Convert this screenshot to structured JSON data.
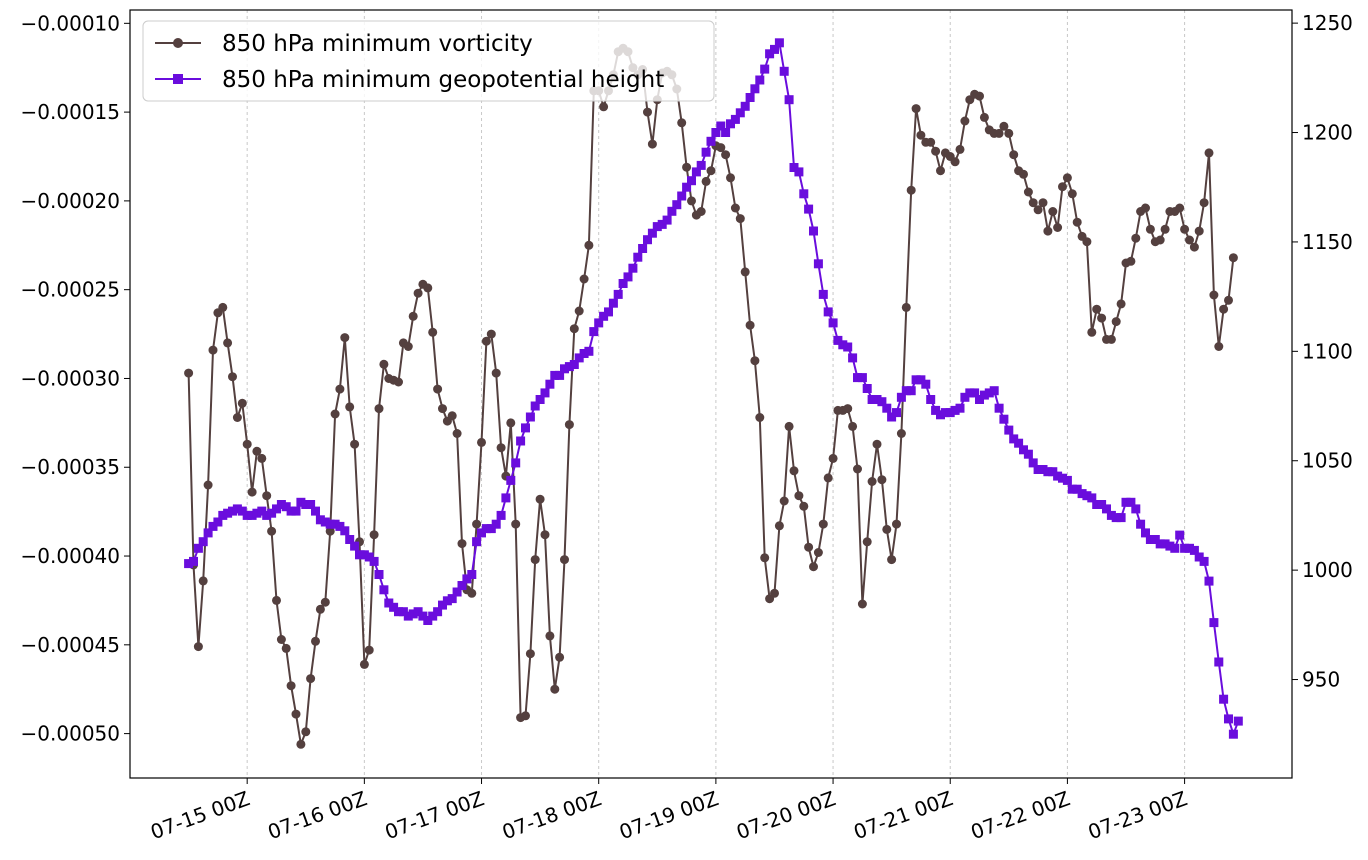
{
  "chart_data": {
    "type": "line",
    "title": "",
    "xlabel": "",
    "ylabel": "",
    "y2label": "",
    "x_ticks": [
      "07-15 00Z",
      "07-16 00Z",
      "07-17 00Z",
      "07-18 00Z",
      "07-19 00Z",
      "07-20 00Z",
      "07-21 00Z",
      "07-22 00Z",
      "07-23 00Z"
    ],
    "x_tick_times": [
      "2023-07-15T00:00Z",
      "2023-07-16T00:00Z",
      "2023-07-17T00:00Z",
      "2023-07-18T00:00Z",
      "2023-07-19T00:00Z",
      "2023-07-20T00:00Z",
      "2023-07-21T00:00Z",
      "2023-07-22T00:00Z",
      "2023-07-23T00:00Z"
    ],
    "x_range": [
      "2023-07-14T00:00Z",
      "2023-07-23T22:00Z"
    ],
    "x_grid": true,
    "y_grid": false,
    "y_left": {
      "ylim": [
        -0.000525,
        -9.25e-05
      ],
      "ticks": [
        "−0.00010",
        "−0.00015",
        "−0.00020",
        "−0.00025",
        "−0.00030",
        "−0.00035",
        "−0.00040",
        "−0.00045",
        "−0.00050"
      ],
      "tick_values": [
        -0.0001,
        -0.00015,
        -0.0002,
        -0.00025,
        -0.0003,
        -0.00035,
        -0.0004,
        -0.00045,
        -0.0005
      ]
    },
    "y_right": {
      "ylim": [
        905,
        1256
      ],
      "ticks": [
        "950",
        "1000",
        "1050",
        "1100",
        "1150",
        "1200",
        "1250"
      ],
      "tick_values": [
        950,
        1000,
        1050,
        1100,
        1150,
        1200,
        1250
      ]
    },
    "legend_position": "top-left",
    "series": [
      {
        "name": "850 hPa minimum vorticity",
        "axis": "left",
        "color": "#54403f",
        "marker": "circle",
        "start": "2023-07-14T12:00Z",
        "step_hours": 1,
        "values": [
          -0.000297,
          -0.000405,
          -0.000451,
          -0.000414,
          -0.00036,
          -0.000284,
          -0.000263,
          -0.00026,
          -0.00028,
          -0.000299,
          -0.000322,
          -0.000314,
          -0.000337,
          -0.000364,
          -0.000341,
          -0.000345,
          -0.000366,
          -0.000386,
          -0.000425,
          -0.000447,
          -0.000452,
          -0.000473,
          -0.000489,
          -0.000506,
          -0.000499,
          -0.000469,
          -0.000448,
          -0.00043,
          -0.000426,
          -0.000386,
          -0.00032,
          -0.000306,
          -0.000277,
          -0.000316,
          -0.000337,
          -0.000392,
          -0.000461,
          -0.000453,
          -0.000388,
          -0.000317,
          -0.000292,
          -0.0003,
          -0.000301,
          -0.000302,
          -0.00028,
          -0.000282,
          -0.000265,
          -0.000252,
          -0.000247,
          -0.000249,
          -0.000274,
          -0.000306,
          -0.000317,
          -0.000324,
          -0.000321,
          -0.000331,
          -0.000393,
          -0.000419,
          -0.000421,
          -0.000382,
          -0.000336,
          -0.000279,
          -0.000275,
          -0.000297,
          -0.000339,
          -0.000355,
          -0.000325,
          -0.000382,
          -0.000491,
          -0.00049,
          -0.000455,
          -0.000402,
          -0.000368,
          -0.000388,
          -0.000445,
          -0.000475,
          -0.000457,
          -0.000402,
          -0.000326,
          -0.000272,
          -0.000262,
          -0.000244,
          -0.000225,
          -0.000138,
          -0.000138,
          -0.000147,
          -0.000138,
          -0.000129,
          -0.000116,
          -0.000114,
          -0.000116,
          -0.000125,
          -0.000129,
          -0.000126,
          -0.00015,
          -0.000168,
          -0.000143,
          -0.000128,
          -0.000127,
          -0.000129,
          -0.000137,
          -0.000156,
          -0.000181,
          -0.0002,
          -0.000208,
          -0.000206,
          -0.000189,
          -0.000183,
          -0.000169,
          -0.00017,
          -0.000174,
          -0.000187,
          -0.000204,
          -0.00021,
          -0.00024,
          -0.00027,
          -0.00029,
          -0.000322,
          -0.000401,
          -0.000424,
          -0.000421,
          -0.000383,
          -0.000369,
          -0.000327,
          -0.000352,
          -0.000366,
          -0.000372,
          -0.000395,
          -0.000406,
          -0.000398,
          -0.000382,
          -0.000356,
          -0.000345,
          -0.000318,
          -0.000318,
          -0.000317,
          -0.000327,
          -0.000351,
          -0.000427,
          -0.000392,
          -0.000358,
          -0.000337,
          -0.000357,
          -0.000385,
          -0.000402,
          -0.000382,
          -0.000331,
          -0.00026,
          -0.000194,
          -0.000148,
          -0.000163,
          -0.000167,
          -0.000167,
          -0.000172,
          -0.000183,
          -0.000173,
          -0.000175,
          -0.000178,
          -0.000171,
          -0.000155,
          -0.000143,
          -0.00014,
          -0.000141,
          -0.000153,
          -0.00016,
          -0.000162,
          -0.000162,
          -0.000158,
          -0.000162,
          -0.000174,
          -0.000183,
          -0.000185,
          -0.000195,
          -0.000201,
          -0.000205,
          -0.000201,
          -0.000217,
          -0.000206,
          -0.000215,
          -0.000192,
          -0.000187,
          -0.000196,
          -0.000212,
          -0.00022,
          -0.000223,
          -0.000274,
          -0.000261,
          -0.000266,
          -0.000278,
          -0.000278,
          -0.000268,
          -0.000258,
          -0.000235,
          -0.000234,
          -0.000221,
          -0.000206,
          -0.000204,
          -0.000216,
          -0.000223,
          -0.000222,
          -0.000216,
          -0.000206,
          -0.000206,
          -0.000204,
          -0.000216,
          -0.000222,
          -0.000226,
          -0.000217,
          -0.000201,
          -0.000173,
          -0.000253,
          -0.000282,
          -0.000261,
          -0.000256,
          -0.000232
        ]
      },
      {
        "name": "850 hPa minimum geopotential height",
        "axis": "right",
        "color": "#6a0ddd",
        "marker": "square",
        "start": "2023-07-14T12:00Z",
        "step_hours": 1,
        "values": [
          1003,
          1004,
          1010,
          1013,
          1017,
          1020,
          1022,
          1025,
          1026,
          1027,
          1028,
          1027,
          1025,
          1025,
          1026,
          1027,
          1025,
          1026,
          1028,
          1030,
          1029,
          1027,
          1027,
          1031,
          1030,
          1030,
          1027,
          1023,
          1022,
          1021,
          1021,
          1020,
          1018,
          1014,
          1011,
          1007,
          1007,
          1006,
          1004,
          998,
          991,
          985,
          983,
          981,
          981,
          979,
          980,
          981,
          979,
          977,
          979,
          981,
          984,
          986,
          987,
          990,
          993,
          996,
          998,
          1013,
          1017,
          1019,
          1019,
          1021,
          1025,
          1033,
          1041,
          1049,
          1059,
          1065,
          1070,
          1075,
          1078,
          1081,
          1085,
          1089,
          1089,
          1092,
          1093,
          1094,
          1097,
          1099,
          1100,
          1109,
          1113,
          1116,
          1118,
          1122,
          1126,
          1131,
          1134,
          1138,
          1143,
          1147,
          1151,
          1154,
          1157,
          1158,
          1160,
          1164,
          1167,
          1171,
          1175,
          1178,
          1182,
          1185,
          1191,
          1196,
          1200,
          1203,
          1200,
          1204,
          1206,
          1209,
          1212,
          1216,
          1220,
          1224,
          1229,
          1236,
          1238,
          1241,
          1228,
          1215,
          1184,
          1182,
          1172,
          1165,
          1155,
          1140,
          1126,
          1118,
          1113,
          1105,
          1103,
          1102,
          1097,
          1088,
          1088,
          1083,
          1078,
          1078,
          1077,
          1074,
          1070,
          1072,
          1079,
          1082,
          1082,
          1087,
          1087,
          1085,
          1078,
          1073,
          1071,
          1072,
          1072,
          1073,
          1074,
          1079,
          1081,
          1081,
          1078,
          1080,
          1081,
          1082,
          1074,
          1069,
          1064,
          1060,
          1058,
          1055,
          1053,
          1049,
          1046,
          1046,
          1045,
          1045,
          1043,
          1042,
          1041,
          1037,
          1037,
          1035,
          1034,
          1033,
          1030,
          1030,
          1028,
          1025,
          1024,
          1024,
          1031,
          1031,
          1028,
          1021,
          1017,
          1014,
          1014,
          1012,
          1012,
          1011,
          1010,
          1016,
          1010,
          1010,
          1009,
          1006,
          1004,
          995,
          976,
          958,
          941,
          932,
          925,
          931
        ]
      }
    ]
  }
}
